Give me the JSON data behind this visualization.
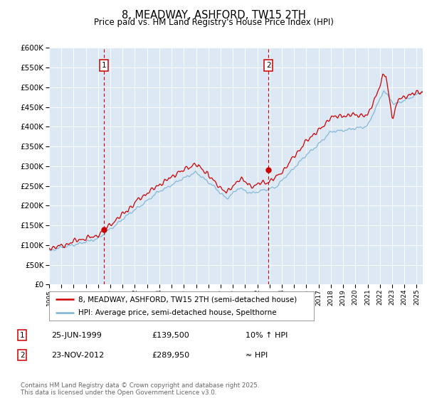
{
  "title": "8, MEADWAY, ASHFORD, TW15 2TH",
  "subtitle": "Price paid vs. HM Land Registry's House Price Index (HPI)",
  "outer_bg_color": "#ffffff",
  "plot_bg_color": "#dce9f5",
  "red_line_color": "#cc0000",
  "blue_line_color": "#7ab3d4",
  "ylim": [
    0,
    600000
  ],
  "yticks": [
    0,
    50000,
    100000,
    150000,
    200000,
    250000,
    300000,
    350000,
    400000,
    450000,
    500000,
    550000,
    600000
  ],
  "marker1_year": 1999.48,
  "marker1_price": 139500,
  "marker1_label": "1",
  "marker1_date": "25-JUN-1999",
  "marker1_hpi": "10% ↑ HPI",
  "marker2_year": 2012.9,
  "marker2_price": 289950,
  "marker2_label": "2",
  "marker2_date": "23-NOV-2012",
  "marker2_hpi": "≈ HPI",
  "legend_line1": "8, MEADWAY, ASHFORD, TW15 2TH (semi-detached house)",
  "legend_line2": "HPI: Average price, semi-detached house, Spelthorne",
  "footnote": "Contains HM Land Registry data © Crown copyright and database right 2025.\nThis data is licensed under the Open Government Licence v3.0.",
  "xstart": 1995,
  "xend": 2025.5
}
